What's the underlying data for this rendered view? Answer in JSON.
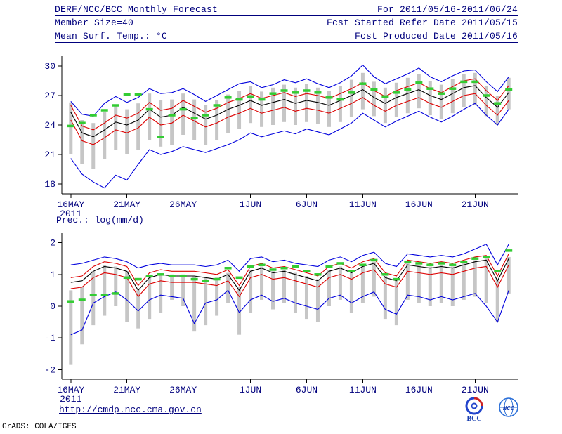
{
  "header": {
    "line1_left": "DERF/NCC/BCC Monthly Forecast",
    "line1_right": "For 2011/05/16-2011/06/24",
    "line2_left": "Member Size=40",
    "line2_right": "Fcst Started Refer Date 2011/05/15",
    "line3_left": "Mean Surf. Temp.: °C",
    "line3_right": "Fcst Produced Date 2011/05/16"
  },
  "footer": {
    "url": "http://cmdp.ncc.cma.gov.cn",
    "credit": "GrADS: COLA/IGES",
    "logos": [
      {
        "label": "BCC"
      },
      {
        "label": "NCC"
      }
    ]
  },
  "colors": {
    "text": "#00007d",
    "axis": "#000000",
    "max_min_line": "#0000dd",
    "quartile_line": "#dd0000",
    "median_line": "#000000",
    "observation": "#33cc33",
    "spread_bar": "#c6c6c6"
  },
  "chart_data": [
    {
      "type": "line",
      "panel": "temperature",
      "title": "Mean Surf. Temp.: °C",
      "ylim": [
        17,
        31
      ],
      "yticks": [
        18,
        21,
        24,
        27,
        30
      ],
      "n_days": 40,
      "xtick_days": [
        0,
        5,
        10,
        16,
        21,
        26,
        31,
        36
      ],
      "xtick_labels": [
        "16MAY",
        "21MAY",
        "26MAY",
        "1JUN",
        "6JUN",
        "11JUN",
        "16JUN",
        "21JUN"
      ],
      "year_label": "2011",
      "series": [
        {
          "name": "ensemble-max",
          "color": "#0000dd",
          "style": "line",
          "values": [
            26.4,
            25.1,
            24.9,
            26.2,
            26.9,
            26.3,
            26.8,
            27.7,
            27.2,
            27.3,
            27.7,
            27.1,
            26.4,
            27.0,
            27.6,
            28.2,
            28.4,
            27.8,
            28.1,
            28.6,
            28.3,
            28.7,
            28.2,
            27.8,
            28.3,
            29.0,
            30.1,
            28.9,
            28.2,
            28.7,
            29.2,
            29.8,
            28.9,
            28.4,
            29.0,
            29.5,
            29.6,
            28.4,
            27.4,
            28.9
          ]
        },
        {
          "name": "upper-quartile",
          "color": "#dd0000",
          "style": "line",
          "values": [
            26.0,
            23.9,
            23.5,
            24.2,
            25.0,
            24.7,
            25.2,
            26.3,
            25.5,
            25.7,
            26.5,
            25.9,
            25.3,
            25.7,
            26.3,
            26.7,
            27.2,
            26.7,
            27.0,
            27.3,
            26.9,
            27.2,
            27.0,
            26.7,
            27.2,
            27.7,
            28.3,
            27.5,
            26.9,
            27.5,
            27.9,
            28.3,
            27.7,
            27.3,
            27.9,
            28.5,
            28.7,
            27.5,
            26.5,
            28.0
          ]
        },
        {
          "name": "ensemble-median",
          "color": "#000000",
          "style": "line",
          "values": [
            25.3,
            23.2,
            22.8,
            23.5,
            24.3,
            24.0,
            24.5,
            25.6,
            24.8,
            25.0,
            25.8,
            25.2,
            24.6,
            25.0,
            25.6,
            26.0,
            26.5,
            26.0,
            26.3,
            26.6,
            26.2,
            26.5,
            26.3,
            26.0,
            26.5,
            27.0,
            27.6,
            26.8,
            26.2,
            26.8,
            27.2,
            27.6,
            27.0,
            26.6,
            27.2,
            27.8,
            28.0,
            26.8,
            25.8,
            27.3
          ]
        },
        {
          "name": "lower-quartile",
          "color": "#dd0000",
          "style": "line",
          "values": [
            24.5,
            22.4,
            22.0,
            22.7,
            23.5,
            23.2,
            23.7,
            24.8,
            24.0,
            24.2,
            25.0,
            24.4,
            23.8,
            24.2,
            24.8,
            25.2,
            25.7,
            25.2,
            25.5,
            25.8,
            25.4,
            25.7,
            25.5,
            25.2,
            25.7,
            26.2,
            26.8,
            26.0,
            25.4,
            26.0,
            26.4,
            26.8,
            26.2,
            25.8,
            26.4,
            27.0,
            27.2,
            26.0,
            25.0,
            26.5
          ]
        },
        {
          "name": "ensemble-min",
          "color": "#0000dd",
          "style": "line",
          "values": [
            20.6,
            19.0,
            18.2,
            17.6,
            18.9,
            18.4,
            20.0,
            21.5,
            21.0,
            21.3,
            21.8,
            21.5,
            21.2,
            21.6,
            22.0,
            22.5,
            23.2,
            22.8,
            23.1,
            23.4,
            23.1,
            23.6,
            23.3,
            23.0,
            23.6,
            24.2,
            25.2,
            24.5,
            23.8,
            24.4,
            24.9,
            25.4,
            24.8,
            24.3,
            24.9,
            25.6,
            26.2,
            25.0,
            24.0,
            25.6
          ]
        },
        {
          "name": "observation",
          "color": "#33cc33",
          "style": "dashes",
          "values": [
            23.9,
            24.2,
            25.0,
            25.5,
            26.0,
            27.1,
            27.1,
            25.6,
            22.8,
            25.0,
            25.6,
            24.7,
            25.0,
            26.0,
            26.8,
            26.6,
            26.9,
            26.6,
            27.2,
            27.5,
            27.3,
            27.5,
            27.3,
            26.8,
            26.6,
            27.3,
            28.2,
            27.6,
            26.9,
            27.3,
            27.6,
            28.3,
            27.7,
            27.2,
            27.7,
            28.4,
            28.4,
            27.0,
            26.2,
            27.6
          ]
        }
      ],
      "bars": {
        "name": "member-spread",
        "color": "#c6c6c6",
        "low": [
          21.0,
          20.0,
          19.5,
          20.5,
          21.5,
          21.0,
          21.5,
          22.5,
          21.8,
          22.0,
          23.0,
          22.5,
          22.0,
          22.5,
          23.2,
          23.6,
          24.2,
          23.8,
          24.0,
          24.3,
          24.0,
          24.3,
          24.1,
          23.8,
          24.3,
          24.8,
          25.6,
          24.9,
          24.2,
          24.8,
          25.2,
          25.7,
          25.0,
          24.6,
          25.2,
          25.8,
          26.0,
          24.9,
          24.0,
          25.6
        ],
        "high": [
          26.3,
          24.5,
          24.2,
          25.3,
          25.9,
          25.6,
          26.2,
          27.2,
          26.5,
          26.6,
          27.2,
          26.6,
          26.0,
          26.5,
          27.1,
          27.5,
          28.0,
          27.4,
          27.8,
          28.1,
          27.8,
          28.2,
          27.8,
          27.5,
          28.0,
          28.6,
          29.3,
          28.4,
          27.8,
          28.3,
          28.8,
          29.2,
          28.5,
          28.1,
          28.7,
          29.2,
          29.3,
          28.0,
          27.0,
          28.8
        ]
      }
    },
    {
      "type": "line",
      "panel": "precipitation",
      "title": "Prec.: log(mm/d)",
      "ylim": [
        -2.3,
        2.3
      ],
      "yticks": [
        -2,
        -1,
        0,
        1,
        2
      ],
      "n_days": 40,
      "xtick_days": [
        0,
        5,
        10,
        16,
        21,
        26,
        31,
        36
      ],
      "xtick_labels": [
        "16MAY",
        "21MAY",
        "26MAY",
        "1JUN",
        "6JUN",
        "11JUN",
        "16JUN",
        "21JUN"
      ],
      "year_label": "2011",
      "series": [
        {
          "name": "ensemble-max",
          "color": "#0000dd",
          "style": "line",
          "values": [
            1.3,
            1.35,
            1.45,
            1.55,
            1.5,
            1.4,
            1.2,
            1.3,
            1.35,
            1.3,
            1.3,
            1.3,
            1.25,
            1.3,
            1.45,
            1.1,
            1.5,
            1.55,
            1.4,
            1.45,
            1.35,
            1.3,
            1.25,
            1.45,
            1.55,
            1.4,
            1.6,
            1.7,
            1.35,
            1.25,
            1.65,
            1.6,
            1.55,
            1.6,
            1.55,
            1.65,
            1.8,
            1.95,
            1.3,
            1.95
          ]
        },
        {
          "name": "upper-quartile",
          "color": "#dd0000",
          "style": "line",
          "values": [
            0.9,
            0.95,
            1.25,
            1.4,
            1.35,
            1.25,
            0.65,
            1.05,
            1.15,
            1.1,
            1.1,
            1.1,
            1.05,
            1.0,
            1.15,
            0.65,
            1.25,
            1.35,
            1.2,
            1.25,
            1.15,
            1.05,
            0.95,
            1.25,
            1.35,
            1.2,
            1.4,
            1.5,
            1.05,
            0.95,
            1.45,
            1.4,
            1.35,
            1.4,
            1.35,
            1.45,
            1.55,
            1.6,
            0.95,
            1.65
          ]
        },
        {
          "name": "ensemble-median",
          "color": "#000000",
          "style": "line",
          "values": [
            0.75,
            0.8,
            1.1,
            1.25,
            1.2,
            1.1,
            0.5,
            0.9,
            1.0,
            0.95,
            0.95,
            0.95,
            0.9,
            0.85,
            1.0,
            0.5,
            1.1,
            1.2,
            1.05,
            1.1,
            1.0,
            0.9,
            0.8,
            1.1,
            1.2,
            1.05,
            1.25,
            1.35,
            0.9,
            0.8,
            1.3,
            1.25,
            1.2,
            1.25,
            1.2,
            1.3,
            1.4,
            1.45,
            0.8,
            1.5
          ]
        },
        {
          "name": "lower-quartile",
          "color": "#dd0000",
          "style": "line",
          "values": [
            0.55,
            0.6,
            0.9,
            1.05,
            1.0,
            0.9,
            0.3,
            0.7,
            0.8,
            0.75,
            0.75,
            0.75,
            0.7,
            0.65,
            0.8,
            0.3,
            0.9,
            1.0,
            0.85,
            0.9,
            0.8,
            0.7,
            0.6,
            0.9,
            1.0,
            0.85,
            1.05,
            1.15,
            0.7,
            0.6,
            1.1,
            1.05,
            1.0,
            1.05,
            1.0,
            1.1,
            1.2,
            1.25,
            0.6,
            1.3
          ]
        },
        {
          "name": "ensemble-min",
          "color": "#0000dd",
          "style": "line",
          "values": [
            -0.9,
            -0.75,
            0.1,
            0.3,
            0.45,
            0.2,
            -0.15,
            0.2,
            0.35,
            0.3,
            0.25,
            -0.55,
            0.1,
            0.2,
            0.5,
            -0.2,
            0.2,
            0.35,
            0.15,
            0.25,
            0.1,
            0.0,
            -0.1,
            0.25,
            0.35,
            0.1,
            0.3,
            0.45,
            -0.1,
            -0.25,
            0.35,
            0.3,
            0.2,
            0.3,
            0.2,
            0.3,
            0.4,
            0.0,
            -0.5,
            0.5
          ]
        },
        {
          "name": "observation",
          "color": "#33cc33",
          "style": "dashes",
          "values": [
            0.15,
            0.2,
            0.35,
            0.35,
            0.4,
            0.9,
            0.85,
            0.95,
            1.0,
            0.95,
            0.95,
            0.85,
            0.8,
            0.85,
            1.2,
            0.9,
            1.25,
            1.3,
            1.15,
            1.2,
            1.25,
            1.1,
            1.0,
            1.25,
            1.35,
            1.1,
            1.3,
            1.45,
            1.0,
            0.85,
            1.4,
            1.35,
            1.3,
            1.35,
            1.3,
            1.4,
            1.5,
            1.55,
            1.1,
            1.75
          ]
        }
      ],
      "bars": {
        "name": "member-spread",
        "color": "#c6c6c6",
        "low": [
          -1.85,
          -1.2,
          -0.6,
          -0.3,
          0.0,
          -0.5,
          -0.7,
          -0.4,
          -0.2,
          0.2,
          0.0,
          -0.8,
          -0.6,
          -0.3,
          0.1,
          -0.9,
          -0.2,
          0.2,
          -0.1,
          0.1,
          -0.2,
          -0.4,
          -0.5,
          0.0,
          0.2,
          -0.2,
          0.1,
          0.3,
          -0.4,
          -0.6,
          0.2,
          0.1,
          0.0,
          0.1,
          0.0,
          0.2,
          0.3,
          0.1,
          -0.5,
          0.4
        ],
        "high": [
          0.5,
          0.6,
          1.1,
          1.3,
          1.25,
          1.1,
          0.5,
          0.9,
          1.0,
          1.0,
          1.0,
          0.95,
          0.9,
          0.9,
          1.05,
          0.6,
          1.15,
          1.25,
          1.1,
          1.15,
          1.05,
          0.95,
          0.85,
          1.15,
          1.25,
          1.1,
          1.3,
          1.4,
          0.95,
          0.85,
          1.35,
          1.3,
          1.25,
          1.3,
          1.25,
          1.35,
          1.45,
          1.5,
          0.85,
          1.55
        ]
      }
    }
  ]
}
